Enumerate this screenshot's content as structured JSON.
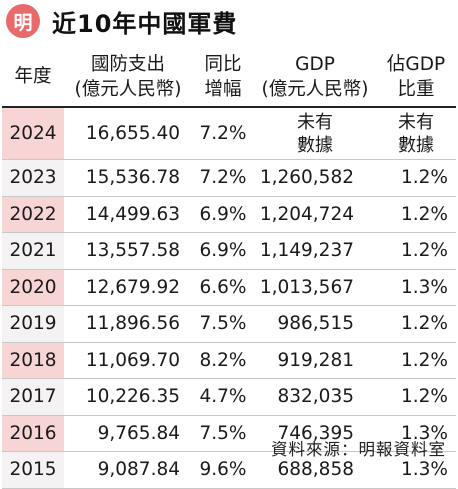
{
  "header": {
    "logo_char": "明",
    "title": "近10年中國軍費"
  },
  "columns": {
    "year": "年度",
    "budget_l1": "國防支出",
    "budget_l2": "(億元人民幣)",
    "growth_l1": "同比",
    "growth_l2": "增幅",
    "gdp_l1": "GDP",
    "gdp_l2": "(億元人民幣)",
    "share_l1": "佔GDP",
    "share_l2": "比重"
  },
  "rows": [
    {
      "year": "2024",
      "budget": "16,655.40",
      "growth": "7.2%",
      "gdp_l1": "未有",
      "gdp_l2": "數據",
      "share_l1": "未有",
      "share_l2": "數據"
    },
    {
      "year": "2023",
      "budget": "15,536.78",
      "growth": "7.2%",
      "gdp": "1,260,582",
      "share": "1.2%"
    },
    {
      "year": "2022",
      "budget": "14,499.63",
      "growth": "6.9%",
      "gdp": "1,204,724",
      "share": "1.2%"
    },
    {
      "year": "2021",
      "budget": "13,557.58",
      "growth": "6.9%",
      "gdp": "1,149,237",
      "share": "1.2%"
    },
    {
      "year": "2020",
      "budget": "12,679.92",
      "growth": "6.6%",
      "gdp": "1,013,567",
      "share": "1.3%"
    },
    {
      "year": "2019",
      "budget": "11,896.56",
      "growth": "7.5%",
      "gdp": "986,515",
      "share": "1.2%"
    },
    {
      "year": "2018",
      "budget": "11,069.70",
      "growth": "8.2%",
      "gdp": "919,281",
      "share": "1.2%"
    },
    {
      "year": "2017",
      "budget": "10,226.35",
      "growth": "4.7%",
      "gdp": "832,035",
      "share": "1.2%"
    },
    {
      "year": "2016",
      "budget": "9,765.84",
      "growth": "7.5%",
      "gdp": "746,395",
      "share": "1.3%"
    },
    {
      "year": "2015",
      "budget": "9,087.84",
      "growth": "9.6%",
      "gdp": "688,858",
      "share": "1.3%"
    }
  ],
  "footer": {
    "source": "資料來源：明報資料室"
  },
  "colors": {
    "logo": "#e86a6a",
    "year_highlight": "#f7d5d5",
    "year_plain": "#f4f2f2"
  }
}
